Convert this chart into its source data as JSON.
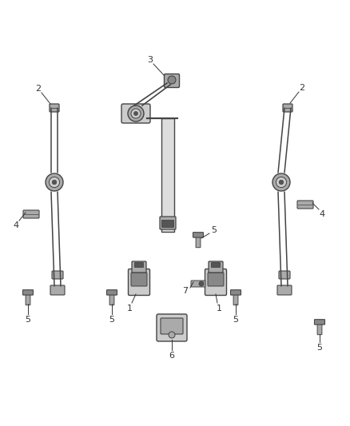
{
  "bg_color": "#ffffff",
  "lc": "#444444",
  "lbl": "#333333",
  "fig_width": 4.38,
  "fig_height": 5.33,
  "dpi": 100,
  "gray1": "#888888",
  "gray2": "#aaaaaa",
  "gray3": "#cccccc",
  "gray_dark": "#555555",
  "gray_light": "#dddddd"
}
